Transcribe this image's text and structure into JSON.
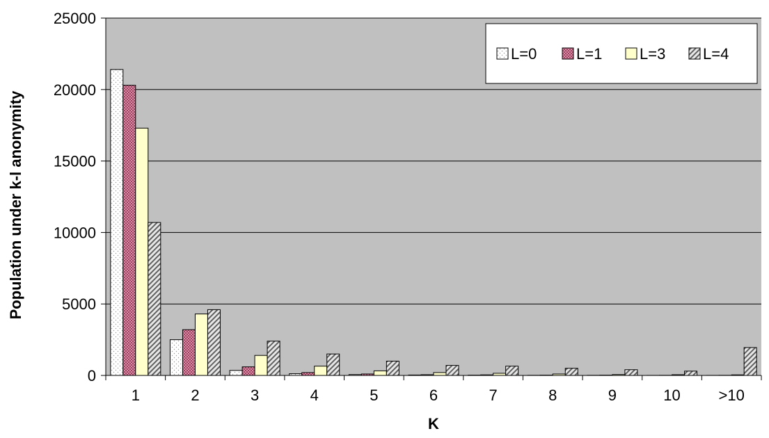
{
  "chart_data": {
    "type": "bar",
    "title": "",
    "xlabel": "K",
    "ylabel": "Population under k-l anonymity",
    "categories": [
      "1",
      "2",
      "3",
      "4",
      "5",
      "6",
      "7",
      "8",
      "9",
      "10",
      ">10"
    ],
    "ylim": [
      0,
      25000
    ],
    "yticks": [
      "0",
      "5000",
      "10000",
      "15000",
      "20000",
      "25000"
    ],
    "grid": true,
    "legend_position": "top-right",
    "series": [
      {
        "name": "L=0",
        "pattern": "dots",
        "fill": "#ffffff",
        "values": [
          21400,
          2500,
          350,
          120,
          60,
          30,
          20,
          10,
          10,
          5,
          5
        ]
      },
      {
        "name": "L=1",
        "pattern": "crosshatch",
        "fill": "#d890a8",
        "values": [
          20300,
          3200,
          600,
          200,
          100,
          50,
          40,
          20,
          20,
          10,
          10
        ]
      },
      {
        "name": "L=3",
        "pattern": "solid",
        "fill": "#ffffcc",
        "values": [
          17300,
          4300,
          1400,
          650,
          320,
          200,
          150,
          100,
          60,
          50,
          40
        ]
      },
      {
        "name": "L=4",
        "pattern": "diagonal",
        "fill": "#c8c8c8",
        "values": [
          10700,
          4600,
          2400,
          1500,
          1000,
          700,
          650,
          500,
          400,
          300,
          1950
        ]
      }
    ],
    "colors": {
      "plot_background": "#c0c0c0",
      "gridline": "#000000",
      "legend_background": "#ffffff"
    }
  }
}
